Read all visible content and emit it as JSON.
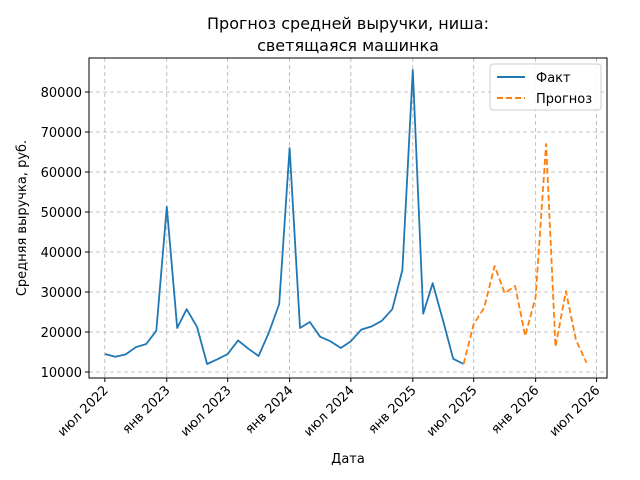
{
  "chart_data": {
    "type": "line",
    "title_line1": "Прогноз средней выручки, ниша:",
    "title_line2": "светящаяся машинка",
    "xlabel": "Дата",
    "ylabel": "Средняя выручка, руб.",
    "ylim": [
      8500,
      88500
    ],
    "xlim": [
      "2022-05-15",
      "2026-08-01"
    ],
    "grid": true,
    "legend_position": "top-right",
    "x_ticks": [
      {
        "date": "2022-07-01",
        "label": "июл 2022"
      },
      {
        "date": "2023-01-01",
        "label": "янв 2023"
      },
      {
        "date": "2023-07-01",
        "label": "июл 2023"
      },
      {
        "date": "2024-01-01",
        "label": "янв 2024"
      },
      {
        "date": "2024-07-01",
        "label": "июл 2024"
      },
      {
        "date": "2025-01-01",
        "label": "янв 2025"
      },
      {
        "date": "2025-07-01",
        "label": "июл 2025"
      },
      {
        "date": "2026-01-01",
        "label": "янв 2026"
      },
      {
        "date": "2026-07-01",
        "label": "июл 2026"
      }
    ],
    "y_ticks": [
      {
        "value": 10000,
        "label": "10000"
      },
      {
        "value": 20000,
        "label": "20000"
      },
      {
        "value": 30000,
        "label": "30000"
      },
      {
        "value": 40000,
        "label": "40000"
      },
      {
        "value": 50000,
        "label": "50000"
      },
      {
        "value": 60000,
        "label": "60000"
      },
      {
        "value": 70000,
        "label": "70000"
      },
      {
        "value": 80000,
        "label": "80000"
      }
    ],
    "series": [
      {
        "name": "Факт",
        "color": "#1f77b4",
        "style": "solid",
        "points": [
          {
            "x": "2022-07-01",
            "y": 14500
          },
          {
            "x": "2022-08-01",
            "y": 13800
          },
          {
            "x": "2022-09-01",
            "y": 14400
          },
          {
            "x": "2022-10-01",
            "y": 16200
          },
          {
            "x": "2022-11-01",
            "y": 17000
          },
          {
            "x": "2022-12-01",
            "y": 20300
          },
          {
            "x": "2023-01-01",
            "y": 51300
          },
          {
            "x": "2023-02-01",
            "y": 21000
          },
          {
            "x": "2023-03-01",
            "y": 25700
          },
          {
            "x": "2023-04-01",
            "y": 21300
          },
          {
            "x": "2023-05-01",
            "y": 12000
          },
          {
            "x": "2023-06-01",
            "y": 13200
          },
          {
            "x": "2023-07-01",
            "y": 14500
          },
          {
            "x": "2023-08-01",
            "y": 17900
          },
          {
            "x": "2023-09-01",
            "y": 15800
          },
          {
            "x": "2023-10-01",
            "y": 14000
          },
          {
            "x": "2023-11-01",
            "y": 20000
          },
          {
            "x": "2023-12-01",
            "y": 27000
          },
          {
            "x": "2024-01-01",
            "y": 66000
          },
          {
            "x": "2024-02-01",
            "y": 21000
          },
          {
            "x": "2024-03-01",
            "y": 22500
          },
          {
            "x": "2024-04-01",
            "y": 18800
          },
          {
            "x": "2024-05-01",
            "y": 17700
          },
          {
            "x": "2024-06-01",
            "y": 16000
          },
          {
            "x": "2024-07-01",
            "y": 17700
          },
          {
            "x": "2024-08-01",
            "y": 20600
          },
          {
            "x": "2024-09-01",
            "y": 21400
          },
          {
            "x": "2024-10-01",
            "y": 22800
          },
          {
            "x": "2024-11-01",
            "y": 25700
          },
          {
            "x": "2024-12-01",
            "y": 35500
          },
          {
            "x": "2025-01-01",
            "y": 85500
          },
          {
            "x": "2025-02-01",
            "y": 24600
          },
          {
            "x": "2025-03-01",
            "y": 32200
          },
          {
            "x": "2025-04-01",
            "y": 22800
          },
          {
            "x": "2025-05-01",
            "y": 13300
          },
          {
            "x": "2025-06-01",
            "y": 12000
          }
        ]
      },
      {
        "name": "Прогноз",
        "color": "#ff7f0e",
        "style": "dashed",
        "points": [
          {
            "x": "2025-06-01",
            "y": 12000
          },
          {
            "x": "2025-07-01",
            "y": 22000
          },
          {
            "x": "2025-08-01",
            "y": 26000
          },
          {
            "x": "2025-09-01",
            "y": 36500
          },
          {
            "x": "2025-10-01",
            "y": 29700
          },
          {
            "x": "2025-11-01",
            "y": 31500
          },
          {
            "x": "2025-12-01",
            "y": 19000
          },
          {
            "x": "2026-01-01",
            "y": 28700
          },
          {
            "x": "2026-02-01",
            "y": 67000
          },
          {
            "x": "2026-03-01",
            "y": 16300
          },
          {
            "x": "2026-04-01",
            "y": 30200
          },
          {
            "x": "2026-05-01",
            "y": 18000
          },
          {
            "x": "2026-06-01",
            "y": 12300
          }
        ]
      }
    ]
  }
}
